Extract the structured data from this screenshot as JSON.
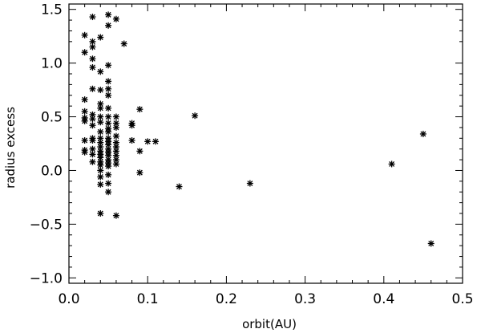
{
  "chart_data": {
    "type": "scatter",
    "title": "",
    "xlabel": "orbit(AU)",
    "ylabel": "radius excess",
    "xlim": [
      0.0,
      0.5
    ],
    "ylim": [
      -1.05,
      1.55
    ],
    "x_ticks": [
      0.0,
      0.1,
      0.2,
      0.3,
      0.4,
      0.5
    ],
    "x_tick_labels": [
      "0.0",
      "0.1",
      "0.2",
      "0.3",
      "0.4",
      "0.5"
    ],
    "y_ticks": [
      -1.0,
      -0.5,
      0.0,
      0.5,
      1.0,
      1.5
    ],
    "y_tick_labels": [
      "−1.0",
      "−0.5",
      "0.0",
      "0.5",
      "1.0",
      "1.5"
    ],
    "grid": false,
    "legend": "none",
    "marker": "asterisk",
    "marker_color": "#000000",
    "points": [
      [
        0.02,
        1.26
      ],
      [
        0.02,
        1.1
      ],
      [
        0.02,
        0.66
      ],
      [
        0.02,
        0.55
      ],
      [
        0.02,
        0.49
      ],
      [
        0.02,
        0.46
      ],
      [
        0.02,
        0.28
      ],
      [
        0.02,
        0.19
      ],
      [
        0.02,
        0.17
      ],
      [
        0.03,
        1.43
      ],
      [
        0.03,
        1.2
      ],
      [
        0.03,
        1.15
      ],
      [
        0.03,
        1.04
      ],
      [
        0.03,
        0.96
      ],
      [
        0.03,
        0.76
      ],
      [
        0.03,
        0.52
      ],
      [
        0.03,
        0.48
      ],
      [
        0.03,
        0.42
      ],
      [
        0.03,
        0.3
      ],
      [
        0.03,
        0.28
      ],
      [
        0.03,
        0.2
      ],
      [
        0.03,
        0.15
      ],
      [
        0.03,
        0.08
      ],
      [
        0.04,
        1.24
      ],
      [
        0.04,
        0.92
      ],
      [
        0.04,
        0.75
      ],
      [
        0.04,
        0.62
      ],
      [
        0.04,
        0.58
      ],
      [
        0.04,
        0.5
      ],
      [
        0.04,
        0.45
      ],
      [
        0.04,
        0.36
      ],
      [
        0.04,
        0.3
      ],
      [
        0.04,
        0.26
      ],
      [
        0.04,
        0.22
      ],
      [
        0.04,
        0.18
      ],
      [
        0.04,
        0.15
      ],
      [
        0.04,
        0.12
      ],
      [
        0.04,
        0.08
      ],
      [
        0.04,
        0.05
      ],
      [
        0.04,
        0.0
      ],
      [
        0.04,
        -0.06
      ],
      [
        0.04,
        -0.13
      ],
      [
        0.04,
        -0.4
      ],
      [
        0.05,
        1.45
      ],
      [
        0.05,
        1.35
      ],
      [
        0.05,
        0.98
      ],
      [
        0.05,
        0.83
      ],
      [
        0.05,
        0.76
      ],
      [
        0.05,
        0.7
      ],
      [
        0.05,
        0.58
      ],
      [
        0.05,
        0.5
      ],
      [
        0.05,
        0.44
      ],
      [
        0.05,
        0.39
      ],
      [
        0.05,
        0.36
      ],
      [
        0.05,
        0.3
      ],
      [
        0.05,
        0.27
      ],
      [
        0.05,
        0.24
      ],
      [
        0.05,
        0.2
      ],
      [
        0.05,
        0.17
      ],
      [
        0.05,
        0.14
      ],
      [
        0.05,
        0.1
      ],
      [
        0.05,
        0.07
      ],
      [
        0.05,
        0.04
      ],
      [
        0.05,
        -0.04
      ],
      [
        0.05,
        -0.12
      ],
      [
        0.05,
        -0.2
      ],
      [
        0.06,
        1.41
      ],
      [
        0.06,
        0.5
      ],
      [
        0.06,
        0.44
      ],
      [
        0.06,
        0.4
      ],
      [
        0.06,
        0.32
      ],
      [
        0.06,
        0.26
      ],
      [
        0.06,
        0.22
      ],
      [
        0.06,
        0.18
      ],
      [
        0.06,
        0.14
      ],
      [
        0.06,
        0.1
      ],
      [
        0.06,
        0.06
      ],
      [
        0.06,
        -0.42
      ],
      [
        0.07,
        1.18
      ],
      [
        0.08,
        0.44
      ],
      [
        0.08,
        0.42
      ],
      [
        0.08,
        0.28
      ],
      [
        0.09,
        0.57
      ],
      [
        0.09,
        0.18
      ],
      [
        0.09,
        -0.02
      ],
      [
        0.1,
        0.27
      ],
      [
        0.11,
        0.27
      ],
      [
        0.14,
        -0.15
      ],
      [
        0.16,
        0.51
      ],
      [
        0.23,
        -0.12
      ],
      [
        0.41,
        0.06
      ],
      [
        0.45,
        0.34
      ],
      [
        0.46,
        -0.68
      ]
    ]
  }
}
